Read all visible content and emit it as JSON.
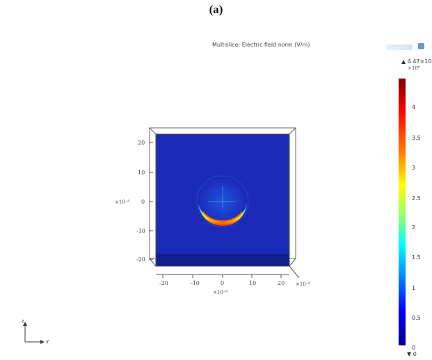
{
  "figure": {
    "label": "(a)"
  },
  "plot": {
    "title": "Multislice: Electric field norm (V/m)",
    "colors": {
      "background": "#1c2ab8",
      "dark_blue": "#0c148c",
      "wire": "#5a5a5a"
    },
    "y_ticks": [
      "20",
      "10",
      "0",
      "-10",
      "-20"
    ],
    "y_exponent": "×10⁻⁶",
    "x_ticks": [
      "-20",
      "-10",
      "0",
      "10",
      "20"
    ],
    "x_exponent": "×10⁻⁶",
    "z_exponent": "×10⁻⁶"
  },
  "colorbar": {
    "max_label": "▲ 4.47×10⁸",
    "scale_label": "×10⁸",
    "ticks": [
      "4",
      "3.5",
      "3",
      "2.5",
      "2",
      "1.5",
      "1",
      "0.5",
      "0"
    ],
    "min_label": "▼ 0",
    "icon": "colorbar-gradient"
  },
  "triad": {
    "z_label": "z",
    "y_label": "y",
    "icon": "axis-triad-icon"
  }
}
